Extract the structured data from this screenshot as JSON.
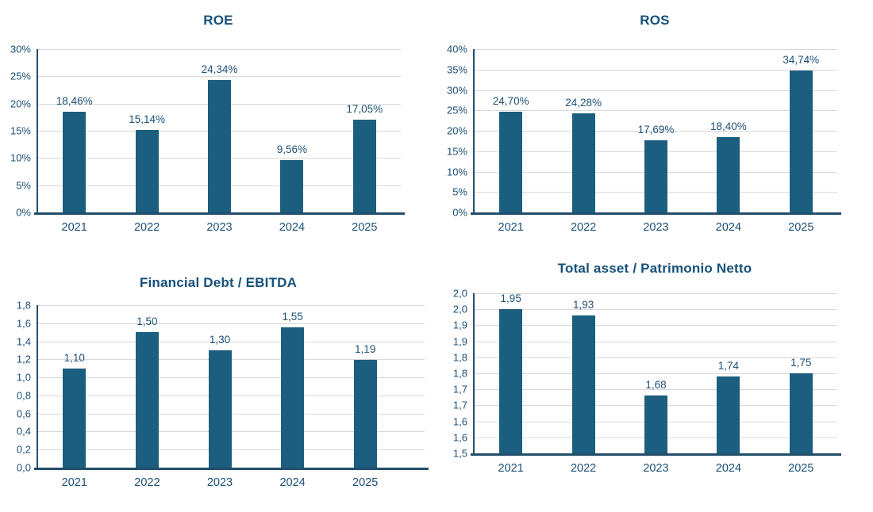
{
  "colors": {
    "bar": "#1B5E80",
    "text": "#1D5077",
    "title": "#17517A",
    "grid": "#D9D9D9",
    "axis": "#234E6B",
    "background": "#FFFFFF"
  },
  "chart_data": [
    {
      "id": "roe",
      "type": "bar",
      "title": "ROE",
      "categories": [
        "2021",
        "2022",
        "2023",
        "2024",
        "2025"
      ],
      "values": [
        18.46,
        15.14,
        24.34,
        9.56,
        17.05
      ],
      "value_labels": [
        "18,46%",
        "15,14%",
        "24,34%",
        "9,56%",
        "17,05%"
      ],
      "ylim": [
        0,
        30
      ],
      "yticks": [
        {
          "v": 0,
          "label": "0%"
        },
        {
          "v": 5,
          "label": "5%"
        },
        {
          "v": 10,
          "label": "10%"
        },
        {
          "v": 15,
          "label": "15%"
        },
        {
          "v": 20,
          "label": "20%"
        },
        {
          "v": 25,
          "label": "25%"
        },
        {
          "v": 30,
          "label": "30%"
        }
      ],
      "grid": true,
      "legend": "none"
    },
    {
      "id": "ros",
      "type": "bar",
      "title": "ROS",
      "categories": [
        "2021",
        "2022",
        "2023",
        "2024",
        "2025"
      ],
      "values": [
        24.7,
        24.28,
        17.69,
        18.4,
        34.74
      ],
      "value_labels": [
        "24,70%",
        "24,28%",
        "17,69%",
        "18,40%",
        "34,74%"
      ],
      "ylim": [
        0,
        40
      ],
      "yticks": [
        {
          "v": 0,
          "label": "0%"
        },
        {
          "v": 5,
          "label": "5%"
        },
        {
          "v": 10,
          "label": "10%"
        },
        {
          "v": 15,
          "label": "15%"
        },
        {
          "v": 20,
          "label": "20%"
        },
        {
          "v": 25,
          "label": "25%"
        },
        {
          "v": 30,
          "label": "30%"
        },
        {
          "v": 35,
          "label": "35%"
        },
        {
          "v": 40,
          "label": "40%"
        }
      ],
      "grid": true,
      "legend": "none"
    },
    {
      "id": "financial-debt-ebitda",
      "type": "bar",
      "title": "Financial Debt / EBITDA",
      "categories": [
        "2021",
        "2022",
        "2023",
        "2024",
        "2025"
      ],
      "values": [
        1.1,
        1.5,
        1.3,
        1.55,
        1.19
      ],
      "value_labels": [
        "1,10",
        "1,50",
        "1,30",
        "1,55",
        "1,19"
      ],
      "ylim": [
        0,
        1.8
      ],
      "yticks": [
        {
          "v": 0,
          "label": "0,0"
        },
        {
          "v": 0.2,
          "label": "0,2"
        },
        {
          "v": 0.4,
          "label": "0,4"
        },
        {
          "v": 0.6,
          "label": "0,6"
        },
        {
          "v": 0.8,
          "label": "0,8"
        },
        {
          "v": 1.0,
          "label": "1,0"
        },
        {
          "v": 1.2,
          "label": "1,2"
        },
        {
          "v": 1.4,
          "label": "1,4"
        },
        {
          "v": 1.6,
          "label": "1,6"
        },
        {
          "v": 1.8,
          "label": "1,8"
        }
      ],
      "grid": true,
      "legend": "none"
    },
    {
      "id": "total-asset-patrimonio-netto",
      "type": "bar",
      "title": "Total asset /  Patrimonio Netto",
      "categories": [
        "2021",
        "2022",
        "2023",
        "2024",
        "2025"
      ],
      "values": [
        1.95,
        1.93,
        1.68,
        1.74,
        1.75
      ],
      "value_labels": [
        "1,95",
        "1,93",
        "1,68",
        "1,74",
        "1,75"
      ],
      "ylim": [
        1.5,
        2.0
      ],
      "yticks": [
        {
          "v": 1.5,
          "label": "1,5"
        },
        {
          "v": 1.55,
          "label": "1,6"
        },
        {
          "v": 1.6,
          "label": "1,6"
        },
        {
          "v": 1.65,
          "label": "1,7"
        },
        {
          "v": 1.7,
          "label": "1,7"
        },
        {
          "v": 1.75,
          "label": "1,8"
        },
        {
          "v": 1.8,
          "label": "1,8"
        },
        {
          "v": 1.85,
          "label": "1,9"
        },
        {
          "v": 1.9,
          "label": "1,9"
        },
        {
          "v": 1.95,
          "label": "2,0"
        },
        {
          "v": 2.0,
          "label": "2,0"
        }
      ],
      "grid": true,
      "legend": "none"
    }
  ]
}
